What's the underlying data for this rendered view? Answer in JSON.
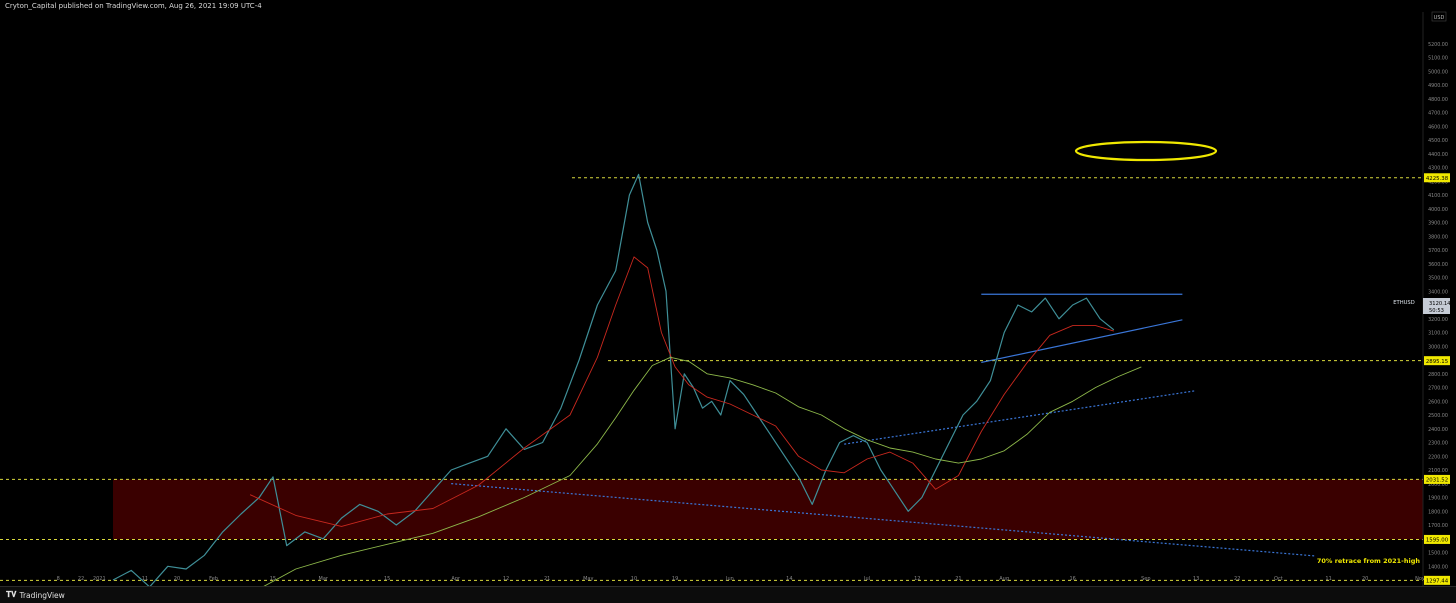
{
  "header": {
    "published_text": "Cryton_Capital published on TradingView.com, Aug 26, 2021 19:09 UTC-4"
  },
  "footer": {
    "brand": "TradingView",
    "logo_icon": "tradingview-logo-icon"
  },
  "colors": {
    "background": "#000000",
    "candles": "#3f8f98",
    "ma_fast": "#c8281e",
    "ma_slow": "#8db84a",
    "level_line": "#d8d83c",
    "channel": "#3a76d8",
    "zone_fill": "#3a0000",
    "highlight_ellipse": "#f0e800",
    "label_bg": "#f0e800",
    "price_label_bg": "#c6ccd6"
  },
  "chart_data": {
    "type": "line",
    "title": "",
    "ylabel": "",
    "currency": "USD",
    "ylim": [
      1300,
      5300
    ],
    "price_ticks": [
      5200,
      5100,
      5000,
      4900,
      4800,
      4700,
      4600,
      4500,
      4400,
      4300,
      4200,
      4100,
      4000,
      3900,
      3800,
      3700,
      3600,
      3500,
      3400,
      3300,
      3200,
      3100,
      3000,
      2900,
      2800,
      2700,
      2600,
      2500,
      2400,
      2300,
      2200,
      2100,
      2000,
      1900,
      1800,
      1700,
      1600,
      1500,
      1400,
      1300
    ],
    "x_ticks": [
      {
        "day": -12,
        "label": "8"
      },
      {
        "day": -7,
        "label": "22"
      },
      {
        "day": -3,
        "label": "2021"
      },
      {
        "day": 7,
        "label": "11"
      },
      {
        "day": 14,
        "label": "20"
      },
      {
        "day": 22,
        "label": "Feb"
      },
      {
        "day": 35,
        "label": "15"
      },
      {
        "day": 46,
        "label": "Mar"
      },
      {
        "day": 60,
        "label": "15"
      },
      {
        "day": 75,
        "label": "Apr"
      },
      {
        "day": 86,
        "label": "12"
      },
      {
        "day": 95,
        "label": "21"
      },
      {
        "day": 104,
        "label": "May"
      },
      {
        "day": 114,
        "label": "10"
      },
      {
        "day": 123,
        "label": "19"
      },
      {
        "day": 135,
        "label": "Jun"
      },
      {
        "day": 148,
        "label": "14"
      },
      {
        "day": 165,
        "label": "Jul"
      },
      {
        "day": 176,
        "label": "12"
      },
      {
        "day": 185,
        "label": "21"
      },
      {
        "day": 195,
        "label": "Aug"
      },
      {
        "day": 210,
        "label": "16"
      },
      {
        "day": 226,
        "label": "Sep"
      },
      {
        "day": 237,
        "label": "13"
      },
      {
        "day": 246,
        "label": "22"
      },
      {
        "day": 255,
        "label": "Oct"
      },
      {
        "day": 266,
        "label": "11"
      },
      {
        "day": 274,
        "label": "20"
      },
      {
        "day": 286,
        "label": "Nov"
      },
      {
        "day": 299,
        "label": "15"
      },
      {
        "day": 316,
        "label": "Dec"
      },
      {
        "day": 330,
        "label": "13"
      }
    ],
    "series": [
      {
        "name": "ETHUSD",
        "x": [
          0,
          4,
          8,
          12,
          16,
          20,
          24,
          28,
          32,
          35,
          38,
          42,
          46,
          50,
          54,
          58,
          62,
          66,
          70,
          74,
          78,
          82,
          86,
          90,
          94,
          98,
          102,
          106,
          110,
          113,
          115,
          117,
          119,
          121,
          123,
          125,
          127,
          129,
          131,
          133,
          135,
          138,
          141,
          144,
          147,
          150,
          153,
          156,
          159,
          162,
          165,
          168,
          171,
          174,
          177,
          180,
          183,
          186,
          189,
          192,
          195,
          198,
          201,
          204,
          207,
          210,
          213,
          216,
          219
        ],
        "values": [
          1300,
          1370,
          1250,
          1400,
          1380,
          1480,
          1650,
          1780,
          1900,
          2050,
          1550,
          1650,
          1600,
          1750,
          1850,
          1800,
          1700,
          1800,
          1950,
          2100,
          2150,
          2200,
          2400,
          2250,
          2300,
          2550,
          2900,
          3300,
          3550,
          4100,
          4250,
          3900,
          3700,
          3400,
          2400,
          2800,
          2700,
          2550,
          2600,
          2500,
          2750,
          2650,
          2500,
          2350,
          2200,
          2050,
          1850,
          2100,
          2300,
          2350,
          2300,
          2100,
          1950,
          1800,
          1900,
          2100,
          2300,
          2500,
          2600,
          2750,
          3100,
          3300,
          3250,
          3350,
          3200,
          3300,
          3350,
          3200,
          3120
        ]
      },
      {
        "name": "",
        "x": [
          30,
          40,
          50,
          60,
          70,
          80,
          90,
          100,
          106,
          110,
          114,
          117,
          120,
          123,
          126,
          130,
          135,
          140,
          145,
          150,
          155,
          160,
          165,
          170,
          175,
          180,
          185,
          190,
          195,
          200,
          205,
          210,
          215,
          219
        ],
        "values": [
          1920,
          1770,
          1690,
          1780,
          1820,
          1990,
          2260,
          2500,
          2920,
          3300,
          3650,
          3570,
          3100,
          2850,
          2720,
          2630,
          2580,
          2500,
          2420,
          2200,
          2100,
          2080,
          2180,
          2230,
          2150,
          1960,
          2060,
          2380,
          2650,
          2880,
          3080,
          3150,
          3150,
          3110
        ]
      },
      {
        "name": "",
        "x": [
          30,
          40,
          50,
          60,
          70,
          80,
          90,
          100,
          106,
          110,
          114,
          118,
          122,
          126,
          130,
          135,
          140,
          145,
          150,
          155,
          160,
          165,
          170,
          175,
          180,
          185,
          190,
          195,
          200,
          205,
          210,
          215,
          220,
          225
        ],
        "values": [
          1200,
          1380,
          1480,
          1560,
          1640,
          1760,
          1900,
          2060,
          2290,
          2480,
          2680,
          2860,
          2920,
          2890,
          2800,
          2770,
          2720,
          2660,
          2560,
          2500,
          2400,
          2320,
          2260,
          2230,
          2180,
          2150,
          2180,
          2240,
          2360,
          2520,
          2600,
          2700,
          2780,
          2850
        ]
      }
    ],
    "levels": [
      {
        "price": 4225.38,
        "label": "4225.38"
      },
      {
        "price": 2895.15,
        "label": "2895.15"
      },
      {
        "price": 2031.52,
        "label": "2031.52"
      },
      {
        "price": 1595.0,
        "label": "1595.00"
      },
      {
        "price": 1297.44,
        "label": "1297.44",
        "note": "70% retrace from 2021-high"
      }
    ],
    "zone": {
      "x0": 0,
      "x1": 350,
      "price_top": 2031.52,
      "price_bottom": 1595.0
    },
    "trendlines": [
      {
        "kind": "dotted",
        "x": [
          74,
          263
        ],
        "values": [
          2001,
          1475
        ]
      },
      {
        "kind": "dotted",
        "x": [
          160,
          237
        ],
        "values": [
          2288,
          2677
        ]
      },
      {
        "kind": "solid",
        "x": [
          190,
          234
        ],
        "values": [
          3378,
          3378
        ]
      },
      {
        "kind": "solid",
        "x": [
          190,
          234
        ],
        "values": [
          2882,
          3192
        ]
      }
    ],
    "current_price": {
      "symbol": "ETHUSD",
      "value": "3120.14",
      "countdown": "50:53"
    }
  }
}
